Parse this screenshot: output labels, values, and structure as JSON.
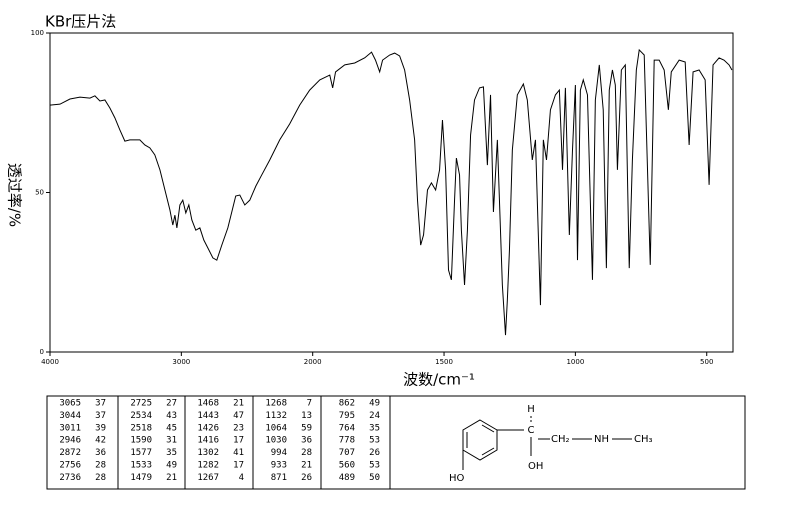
{
  "chart_data": {
    "type": "line",
    "title": "KBr压片法",
    "x_label": "波数/cm⁻¹",
    "y_label": "透过率/%",
    "x": [
      4000,
      3924,
      3848,
      3772,
      3696,
      3658,
      3620,
      3582,
      3544,
      3506,
      3468,
      3430,
      3392,
      3316,
      3278,
      3240,
      3202,
      3163,
      3125,
      3087,
      3065,
      3049,
      3034,
      3011,
      2989,
      2966,
      2943,
      2920,
      2890,
      2859,
      2829,
      2798,
      2760,
      2730,
      2692,
      2646,
      2616,
      2586,
      2555,
      2517,
      2479,
      2433,
      2388,
      2327,
      2251,
      2175,
      2099,
      2023,
      1973,
      1935,
      1924,
      1913,
      1878,
      1840,
      1802,
      1776,
      1761,
      1745,
      1734,
      1707,
      1688,
      1669,
      1650,
      1631,
      1612,
      1601,
      1589,
      1578,
      1563,
      1548,
      1532,
      1517,
      1506,
      1494,
      1483,
      1472,
      1460,
      1453,
      1441,
      1434,
      1422,
      1411,
      1399,
      1384,
      1365,
      1350,
      1335,
      1323,
      1312,
      1297,
      1278,
      1266,
      1259,
      1251,
      1240,
      1221,
      1198,
      1183,
      1164,
      1152,
      1133,
      1122,
      1110,
      1095,
      1076,
      1061,
      1049,
      1038,
      1023,
      1011,
      1000,
      992,
      981,
      970,
      954,
      935,
      924,
      909,
      894,
      882,
      871,
      859,
      848,
      840,
      825,
      810,
      795,
      783,
      768,
      757,
      738,
      715,
      700,
      681,
      662,
      646,
      635,
      605,
      582,
      567,
      552,
      529,
      506,
      491,
      476,
      453,
      434,
      415,
      404
    ],
    "values": [
      77.4,
      77.7,
      79.3,
      79.9,
      79.6,
      80.3,
      78.7,
      79.0,
      76.5,
      73.4,
      69.6,
      66.1,
      66.5,
      66.5,
      64.9,
      64.0,
      61.8,
      57.1,
      50.8,
      44.5,
      39.8,
      42.9,
      38.9,
      46.1,
      47.6,
      43.6,
      46.1,
      41.4,
      38.2,
      38.9,
      35.1,
      32.6,
      29.5,
      28.8,
      33.5,
      38.9,
      43.9,
      48.9,
      49.2,
      46.1,
      47.6,
      52.0,
      55.5,
      60.2,
      66.5,
      71.5,
      77.4,
      82.1,
      85.3,
      86.8,
      82.8,
      87.8,
      90.0,
      90.6,
      92.2,
      94.0,
      91.5,
      87.8,
      91.5,
      93.1,
      93.7,
      92.8,
      88.4,
      79.0,
      66.5,
      47.6,
      33.5,
      36.7,
      50.8,
      53.0,
      50.8,
      57.1,
      72.7,
      57.1,
      25.7,
      22.6,
      47.6,
      60.8,
      55.5,
      38.2,
      21.0,
      38.2,
      68.0,
      79.0,
      82.8,
      83.1,
      58.6,
      80.6,
      43.9,
      66.5,
      21.0,
      5.3,
      16.3,
      32.0,
      63.3,
      80.6,
      84.0,
      79.0,
      60.2,
      66.5,
      14.7,
      66.5,
      60.2,
      75.9,
      80.6,
      82.1,
      57.1,
      82.8,
      36.7,
      63.3,
      83.7,
      28.8,
      82.1,
      85.3,
      80.6,
      22.6,
      79.0,
      90.0,
      75.9,
      26.3,
      82.1,
      88.4,
      83.7,
      57.1,
      88.4,
      90.0,
      26.3,
      60.2,
      88.4,
      94.7,
      93.1,
      27.3,
      91.5,
      91.5,
      88.4,
      75.9,
      87.8,
      91.5,
      90.9,
      64.9,
      87.8,
      88.4,
      85.3,
      52.4,
      90.0,
      92.2,
      91.5,
      90.0,
      88.4
    ],
    "color": "#000000",
    "xlim": [
      4000,
      400
    ],
    "xticks": [
      4000,
      3000,
      2000,
      1500,
      1000,
      500
    ],
    "ylim": [
      0,
      100
    ],
    "yticks": [
      0,
      50,
      100
    ]
  },
  "peak_table": {
    "columns": [
      [
        [
          3065,
          37
        ],
        [
          3044,
          37
        ],
        [
          3011,
          39
        ],
        [
          2946,
          42
        ],
        [
          2872,
          36
        ],
        [
          2756,
          28
        ],
        [
          2736,
          28
        ]
      ],
      [
        [
          2725,
          27
        ],
        [
          2534,
          43
        ],
        [
          2518,
          45
        ],
        [
          1590,
          31
        ],
        [
          1577,
          35
        ],
        [
          1533,
          49
        ],
        [
          1479,
          21
        ]
      ],
      [
        [
          1468,
          21
        ],
        [
          1443,
          47
        ],
        [
          1426,
          23
        ],
        [
          1416,
          17
        ],
        [
          1302,
          41
        ],
        [
          1282,
          17
        ],
        [
          1267,
          4
        ]
      ],
      [
        [
          1268,
          7
        ],
        [
          1132,
          13
        ],
        [
          1064,
          59
        ],
        [
          1030,
          36
        ],
        [
          994,
          28
        ],
        [
          933,
          21
        ],
        [
          871,
          26
        ]
      ],
      [
        [
          862,
          49
        ],
        [
          795,
          24
        ],
        [
          764,
          35
        ],
        [
          778,
          53
        ],
        [
          707,
          26
        ],
        [
          560,
          53
        ],
        [
          489,
          50
        ]
      ]
    ]
  },
  "structure": {
    "h": "H",
    "c": "C",
    "ch2": "CH₂",
    "nh": "NH",
    "ch3": "CH₃",
    "oh": "OH",
    "ho": "HO"
  }
}
